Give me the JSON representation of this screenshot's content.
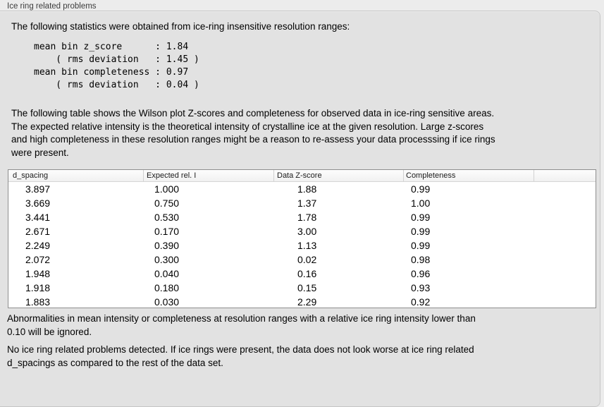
{
  "panel": {
    "title": "Ice ring related problems"
  },
  "intro_paragraph": "The following statistics were obtained from ice-ring insensitive resolution ranges:",
  "stats_block": "mean bin z_score      : 1.84\n    ( rms deviation   : 1.45 )\nmean bin completeness : 0.97\n    ( rms deviation   : 0.04 )",
  "stats": {
    "mean_bin_z_score": "1.84",
    "z_score_rms_deviation": "1.45",
    "mean_bin_completeness": "0.97",
    "completeness_rms_deviation": "0.04"
  },
  "table_description": "The following table shows the Wilson plot Z-scores and completeness for observed data in ice-ring sensitive areas.\nThe expected relative intensity is the theoretical intensity of crystalline ice at the given resolution. Large z-scores\nand high completeness in these resolution ranges might be a reason to re-assess your data processsing if ice rings\nwere present.",
  "table": {
    "columns": [
      "d_spacing",
      "Expected rel. I",
      "Data Z-score",
      "Completeness",
      ""
    ],
    "rows": [
      [
        "3.897",
        "1.000",
        "1.88",
        "0.99"
      ],
      [
        "3.669",
        "0.750",
        "1.37",
        "1.00"
      ],
      [
        "3.441",
        "0.530",
        "1.78",
        "0.99"
      ],
      [
        "2.671",
        "0.170",
        "3.00",
        "0.99"
      ],
      [
        "2.249",
        "0.390",
        "1.13",
        "0.99"
      ],
      [
        "2.072",
        "0.300",
        "0.02",
        "0.98"
      ],
      [
        "1.948",
        "0.040",
        "0.16",
        "0.96"
      ],
      [
        "1.918",
        "0.180",
        "0.15",
        "0.93"
      ],
      [
        "1.883",
        "0.030",
        "2.29",
        "0.92"
      ]
    ]
  },
  "abnormalities_note": "Abnormalities in mean intensity or completeness at resolution ranges with a relative ice ring intensity lower than\n0.10 will be ignored.",
  "result_note": "No ice ring related problems detected. If ice rings were present, the data does not look worse at ice ring related\nd_spacings as compared to the rest of the data set.",
  "colors": {
    "outer_background": "#ececec",
    "groupbox_background": "#e2e2e2",
    "groupbox_border": "#c6c6c6",
    "table_border": "#8e8e8e",
    "table_header_background": "#f6f6f6",
    "text": "#000000"
  }
}
